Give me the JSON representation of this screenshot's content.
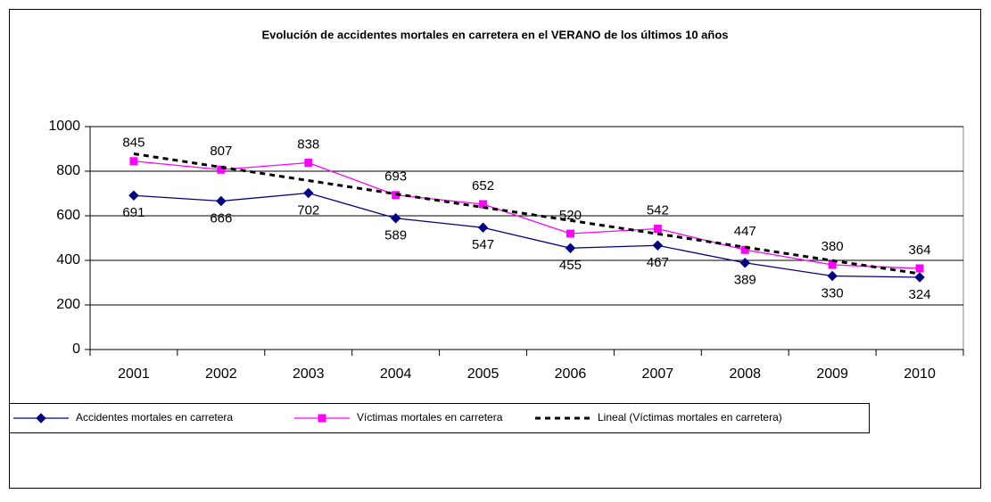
{
  "chart_data": {
    "type": "line",
    "title": "Evolución de accidentes mortales en carretera en el VERANO de los últimos 10 años",
    "categories": [
      "2001",
      "2002",
      "2003",
      "2004",
      "2005",
      "2006",
      "2007",
      "2008",
      "2009",
      "2010"
    ],
    "series": [
      {
        "name": "Accidentes mortales en carretera",
        "color": "#000080",
        "marker": "diamond",
        "data_labels": "below",
        "values": [
          691,
          666,
          702,
          589,
          547,
          455,
          467,
          389,
          330,
          324
        ]
      },
      {
        "name": "Víctimas mortales en carretera",
        "color": "#ff00ff",
        "marker": "square",
        "data_labels": "above",
        "values": [
          845,
          807,
          838,
          693,
          652,
          520,
          542,
          447,
          380,
          364
        ]
      },
      {
        "name": "Lineal (Víctimas mortales en carretera)",
        "color": "#000000",
        "dash": true,
        "values": [
          878,
          818,
          758,
          698,
          638,
          579,
          519,
          459,
          399,
          340
        ]
      }
    ],
    "ylim": [
      0,
      1000
    ],
    "yticks": [
      0,
      200,
      400,
      600,
      800,
      1000
    ],
    "grid": true,
    "legend": "bottom"
  }
}
